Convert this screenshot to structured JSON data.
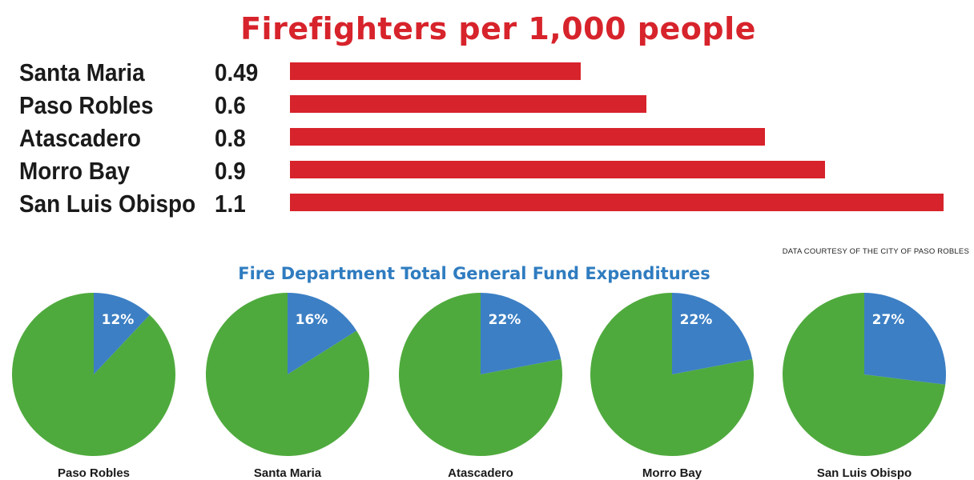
{
  "chart_data": [
    {
      "type": "bar",
      "orientation": "horizontal",
      "title": "Firefighters per 1,000 people",
      "categories": [
        "Santa Maria",
        "Paso Robles",
        "Atascadero",
        "Morro Bay",
        "San Luis Obispo"
      ],
      "values": [
        0.49,
        0.6,
        0.8,
        0.9,
        1.1
      ],
      "value_labels": [
        "0.49",
        "0.6",
        "0.8",
        "0.9",
        "1.1"
      ],
      "xlabel": "",
      "ylabel": "",
      "xlim": [
        0,
        1.1
      ],
      "grid": false,
      "legend": "none",
      "colors": {
        "bar": "#d7232b",
        "title": "#d7232b"
      }
    },
    {
      "type": "pie",
      "title": "Fire Department Total General Fund Expenditures",
      "categories": [
        "Paso Robles",
        "Santa Maria",
        "Atascadero",
        "Morro Bay",
        "San Luis Obispo"
      ],
      "values": [
        12,
        16,
        22,
        22,
        27
      ],
      "value_labels": [
        "12%",
        "16%",
        "22%",
        "22%",
        "27%"
      ],
      "units": "percent of general fund",
      "legend": "none",
      "colors": {
        "fire_slice": "#3c7fc4",
        "rest": "#4faa3d",
        "title": "#2f7cc0"
      }
    }
  ],
  "credit": "DATA COURTESY OF THE CITY OF PASO ROBLES"
}
